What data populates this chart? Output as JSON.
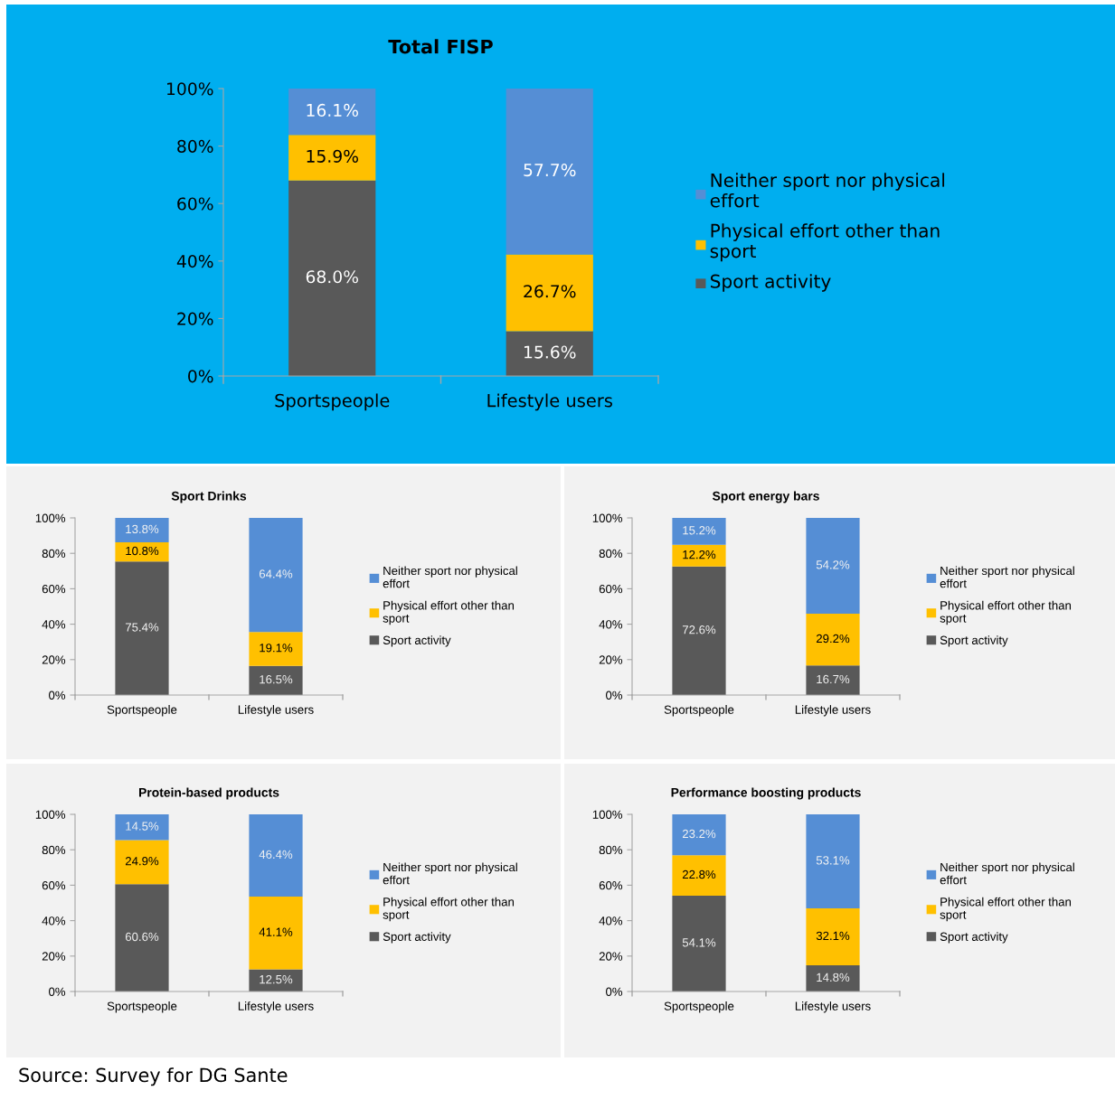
{
  "chart_data": [
    {
      "type": "bar",
      "stacked": true,
      "title": "Total FISP",
      "categories": [
        "Sportspeople",
        "Lifestyle users"
      ],
      "ylim": [
        0,
        100
      ],
      "yticks": [
        {
          "value": 0,
          "label": "0%"
        },
        {
          "value": 20,
          "label": "20%"
        },
        {
          "value": 40,
          "label": "40%"
        },
        {
          "value": 60,
          "label": "60%"
        },
        {
          "value": 80,
          "label": "80%"
        },
        {
          "value": 100,
          "label": "100%"
        }
      ],
      "grid": false,
      "legend": "right",
      "series": [
        {
          "name": "Sport activity",
          "color": "#595959",
          "values": [
            68.0,
            15.6
          ],
          "value_labels": [
            "68.0%",
            "15.6%"
          ]
        },
        {
          "name": "Physical effort other than\nsport",
          "color": "#ffc000",
          "values": [
            15.9,
            26.7
          ],
          "value_labels": [
            "15.9%",
            "26.7%"
          ]
        },
        {
          "name": "Neither sport nor physical\neffort",
          "color": "#558ed5",
          "values": [
            16.1,
            57.7
          ],
          "value_labels": [
            "16.1%",
            "57.7%"
          ]
        }
      ]
    },
    {
      "type": "bar",
      "stacked": true,
      "title": "Sport Drinks",
      "categories": [
        "Sportspeople",
        "Lifestyle users"
      ],
      "ylim": [
        0,
        100
      ],
      "yticks": [
        {
          "value": 0,
          "label": "0%"
        },
        {
          "value": 20,
          "label": "20%"
        },
        {
          "value": 40,
          "label": "40%"
        },
        {
          "value": 60,
          "label": "60%"
        },
        {
          "value": 80,
          "label": "80%"
        },
        {
          "value": 100,
          "label": "100%"
        }
      ],
      "grid": false,
      "legend": "right",
      "series": [
        {
          "name": "Sport activity",
          "color": "#595959",
          "values": [
            75.4,
            16.5
          ],
          "value_labels": [
            "75.4%",
            "16.5%"
          ]
        },
        {
          "name": "Physical effort other than\nsport",
          "color": "#ffc000",
          "values": [
            10.8,
            19.1
          ],
          "value_labels": [
            "10.8%",
            "19.1%"
          ]
        },
        {
          "name": "Neither sport nor physical\neffort",
          "color": "#558ed5",
          "values": [
            13.8,
            64.4
          ],
          "value_labels": [
            "13.8%",
            "64.4%"
          ]
        }
      ]
    },
    {
      "type": "bar",
      "stacked": true,
      "title": "Sport energy bars",
      "categories": [
        "Sportspeople",
        "Lifestyle users"
      ],
      "ylim": [
        0,
        100
      ],
      "yticks": [
        {
          "value": 0,
          "label": "0%"
        },
        {
          "value": 20,
          "label": "20%"
        },
        {
          "value": 40,
          "label": "40%"
        },
        {
          "value": 60,
          "label": "60%"
        },
        {
          "value": 80,
          "label": "80%"
        },
        {
          "value": 100,
          "label": "100%"
        }
      ],
      "grid": false,
      "legend": "right",
      "series": [
        {
          "name": "Sport activity",
          "color": "#595959",
          "values": [
            72.6,
            16.7
          ],
          "value_labels": [
            "72.6%",
            "16.7%"
          ]
        },
        {
          "name": "Physical effort other than\nsport",
          "color": "#ffc000",
          "values": [
            12.2,
            29.2
          ],
          "value_labels": [
            "12.2%",
            "29.2%"
          ]
        },
        {
          "name": "Neither sport nor physical\neffort",
          "color": "#558ed5",
          "values": [
            15.2,
            54.2
          ],
          "value_labels": [
            "15.2%",
            "54.2%"
          ]
        }
      ]
    },
    {
      "type": "bar",
      "stacked": true,
      "title": "Protein-based products",
      "categories": [
        "Sportspeople",
        "Lifestyle users"
      ],
      "ylim": [
        0,
        100
      ],
      "yticks": [
        {
          "value": 0,
          "label": "0%"
        },
        {
          "value": 20,
          "label": "20%"
        },
        {
          "value": 40,
          "label": "40%"
        },
        {
          "value": 60,
          "label": "60%"
        },
        {
          "value": 80,
          "label": "80%"
        },
        {
          "value": 100,
          "label": "100%"
        }
      ],
      "grid": false,
      "legend": "right",
      "series": [
        {
          "name": "Sport activity",
          "color": "#595959",
          "values": [
            60.6,
            12.5
          ],
          "value_labels": [
            "60.6%",
            "12.5%"
          ]
        },
        {
          "name": "Physical effort other than\nsport",
          "color": "#ffc000",
          "values": [
            24.9,
            41.1
          ],
          "value_labels": [
            "24.9%",
            "41.1%"
          ]
        },
        {
          "name": "Neither sport nor physical\neffort",
          "color": "#558ed5",
          "values": [
            14.5,
            46.4
          ],
          "value_labels": [
            "14.5%",
            "46.4%"
          ]
        }
      ]
    },
    {
      "type": "bar",
      "stacked": true,
      "title": "Performance boosting products",
      "categories": [
        "Sportspeople",
        "Lifestyle users"
      ],
      "ylim": [
        0,
        100
      ],
      "yticks": [
        {
          "value": 0,
          "label": "0%"
        },
        {
          "value": 20,
          "label": "20%"
        },
        {
          "value": 40,
          "label": "40%"
        },
        {
          "value": 60,
          "label": "60%"
        },
        {
          "value": 80,
          "label": "80%"
        },
        {
          "value": 100,
          "label": "100%"
        }
      ],
      "grid": false,
      "legend": "right",
      "annotations": [
        "Source: Survey for DG Sante"
      ],
      "series": [
        {
          "name": "Sport activity",
          "color": "#595959",
          "values": [
            54.1,
            14.8
          ],
          "value_labels": [
            "54.1%",
            "14.8%"
          ]
        },
        {
          "name": "Physical effort other than\nsport",
          "color": "#ffc000",
          "values": [
            22.8,
            32.1
          ],
          "value_labels": [
            "22.8%",
            "32.1%"
          ]
        },
        {
          "name": "Neither sport nor physical\neffort",
          "color": "#558ed5",
          "values": [
            23.2,
            53.1
          ],
          "value_labels": [
            "23.2%",
            "53.1%"
          ]
        }
      ]
    }
  ]
}
